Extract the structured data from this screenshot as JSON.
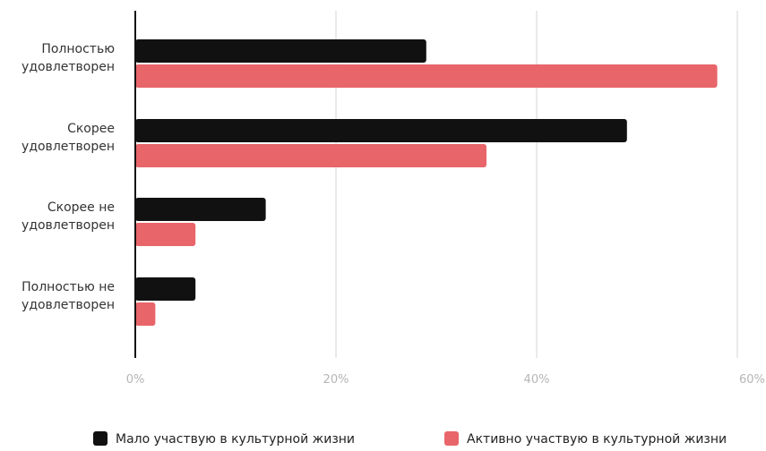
{
  "chart_data": {
    "type": "bar",
    "orientation": "horizontal",
    "categories": [
      [
        "Полностью",
        "удовлетворен"
      ],
      [
        "Скорее",
        "удовлетворен"
      ],
      [
        "Скорее не",
        "удовлетворен"
      ],
      [
        "Полностью не",
        "удовлетворен"
      ]
    ],
    "series": [
      {
        "name": "Мало участвую в культурной жизни",
        "color": "#111111",
        "values": [
          29,
          49,
          13,
          6
        ]
      },
      {
        "name": "Активно участвую в культурной жизни",
        "color": "#e8656a",
        "values": [
          58,
          35,
          6,
          2
        ]
      }
    ],
    "xlim": [
      0,
      60
    ],
    "x_ticks": [
      "0%",
      "20%",
      "40%",
      "60%"
    ],
    "x_tick_values": [
      0,
      20,
      40,
      60
    ],
    "grid": true,
    "legend_position": "bottom"
  }
}
